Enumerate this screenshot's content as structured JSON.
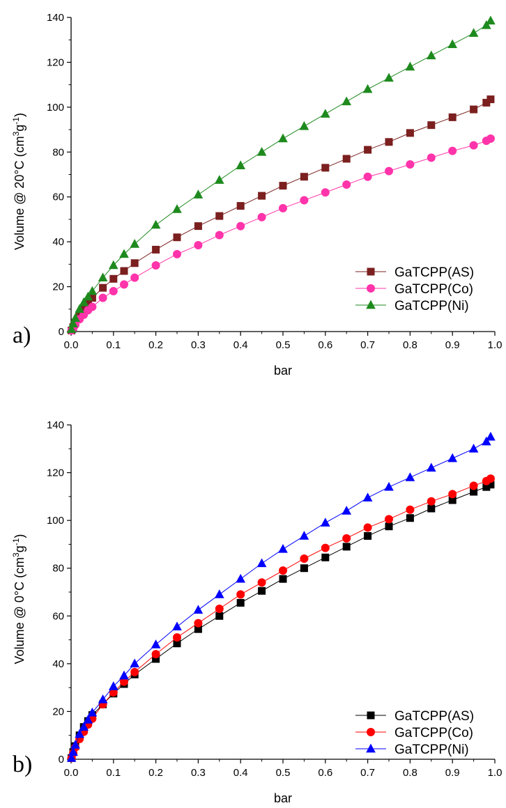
{
  "chart_data": [
    {
      "type": "line",
      "panel_label": "a)",
      "xlabel": "bar",
      "ylabel": {
        "prefix": "Volume @ 20°C (cm",
        "sup1": "3",
        "mid": "g",
        "sup2": "-1",
        "suffix": ")"
      },
      "xlim": [
        0,
        1.0
      ],
      "ylim": [
        0,
        140
      ],
      "xticks": [
        0.0,
        0.1,
        0.2,
        0.3,
        0.4,
        0.5,
        0.6,
        0.7,
        0.8,
        0.9,
        1.0
      ],
      "xtick_labels": [
        "0.0",
        "0.1",
        "0.2",
        "0.3",
        "0.4",
        "0.5",
        "0.6",
        "0.7",
        "0.8",
        "0.9",
        "1.0"
      ],
      "yticks": [
        0,
        20,
        40,
        60,
        80,
        100,
        120,
        140
      ],
      "ytick_labels": [
        "0",
        "20",
        "40",
        "60",
        "80",
        "100",
        "120",
        "140"
      ],
      "legend_position": "bottom-right",
      "series": [
        {
          "name": "GaTCPP(AS)",
          "color": "#7b1f1f",
          "marker": "square",
          "x": [
            0.001,
            0.005,
            0.01,
            0.02,
            0.03,
            0.04,
            0.05,
            0.075,
            0.1,
            0.125,
            0.15,
            0.2,
            0.25,
            0.3,
            0.35,
            0.4,
            0.45,
            0.5,
            0.55,
            0.6,
            0.65,
            0.7,
            0.75,
            0.8,
            0.85,
            0.9,
            0.95,
            0.98,
            0.99
          ],
          "y": [
            0.5,
            2,
            4,
            7,
            10,
            12.5,
            15,
            19.5,
            23.5,
            27,
            30.5,
            36.5,
            42,
            47,
            51.5,
            56,
            60.5,
            65,
            69,
            73,
            77,
            81,
            84.5,
            88.5,
            92,
            95.5,
            99,
            102,
            103.5
          ]
        },
        {
          "name": "GaTCPP(Co)",
          "color": "#ff33aa",
          "marker": "circle",
          "x": [
            0.001,
            0.005,
            0.01,
            0.02,
            0.03,
            0.04,
            0.05,
            0.075,
            0.1,
            0.125,
            0.15,
            0.2,
            0.25,
            0.3,
            0.35,
            0.4,
            0.45,
            0.5,
            0.55,
            0.6,
            0.65,
            0.7,
            0.75,
            0.8,
            0.85,
            0.9,
            0.95,
            0.98,
            0.99
          ],
          "y": [
            0.5,
            1.5,
            3,
            5.5,
            7.5,
            9.5,
            11,
            15,
            18,
            21,
            24,
            29.5,
            34.5,
            38.5,
            43,
            47,
            51,
            55,
            58.5,
            62,
            65.5,
            69,
            71.5,
            74.5,
            77.5,
            80.5,
            83,
            85,
            86
          ]
        },
        {
          "name": "GaTCPP(Ni)",
          "color": "#1e8a1e",
          "marker": "triangle",
          "x": [
            0.001,
            0.005,
            0.01,
            0.02,
            0.03,
            0.04,
            0.05,
            0.075,
            0.1,
            0.125,
            0.15,
            0.2,
            0.25,
            0.3,
            0.35,
            0.4,
            0.45,
            0.5,
            0.55,
            0.6,
            0.65,
            0.7,
            0.75,
            0.8,
            0.85,
            0.9,
            0.95,
            0.98,
            0.99
          ],
          "y": [
            1,
            3.5,
            6,
            10,
            13,
            15.5,
            18,
            24,
            29.5,
            34.5,
            39,
            47.5,
            54.5,
            61,
            67.5,
            74,
            80,
            86,
            91.5,
            97,
            102.5,
            108,
            113,
            118,
            123,
            128,
            133,
            136.5,
            138.5
          ]
        }
      ]
    },
    {
      "type": "line",
      "panel_label": "b)",
      "xlabel": "bar",
      "ylabel": {
        "prefix": "Volume @ 0°C (cm",
        "sup1": "3",
        "mid": "g",
        "sup2": "-1",
        "suffix": ")"
      },
      "xlim": [
        0,
        1.0
      ],
      "ylim": [
        0,
        140
      ],
      "xticks": [
        0.0,
        0.1,
        0.2,
        0.3,
        0.4,
        0.5,
        0.6,
        0.7,
        0.8,
        0.9,
        1.0
      ],
      "xtick_labels": [
        "0.0",
        "0.1",
        "0.2",
        "0.3",
        "0.4",
        "0.5",
        "0.6",
        "0.7",
        "0.8",
        "0.9",
        "1.0"
      ],
      "yticks": [
        0,
        20,
        40,
        60,
        80,
        100,
        120,
        140
      ],
      "ytick_labels": [
        "0",
        "20",
        "40",
        "60",
        "80",
        "100",
        "120",
        "140"
      ],
      "legend_position": "bottom-right",
      "series": [
        {
          "name": "GaTCPP(AS)",
          "color": "#000000",
          "marker": "square",
          "x": [
            0.001,
            0.005,
            0.01,
            0.02,
            0.03,
            0.04,
            0.05,
            0.075,
            0.1,
            0.125,
            0.15,
            0.2,
            0.25,
            0.3,
            0.35,
            0.4,
            0.45,
            0.5,
            0.55,
            0.6,
            0.65,
            0.7,
            0.75,
            0.8,
            0.85,
            0.9,
            0.95,
            0.98,
            0.99
          ],
          "y": [
            0.5,
            3,
            5.5,
            10,
            13.5,
            16,
            18.5,
            23,
            27.5,
            31.5,
            35.5,
            42,
            48.5,
            54.5,
            60,
            65.5,
            70.5,
            75.5,
            80,
            84.5,
            89,
            93.5,
            97.5,
            101,
            105,
            108.5,
            112,
            114,
            115
          ]
        },
        {
          "name": "GaTCPP(Co)",
          "color": "#ff0000",
          "marker": "circle",
          "x": [
            0.001,
            0.005,
            0.01,
            0.02,
            0.03,
            0.04,
            0.05,
            0.075,
            0.1,
            0.125,
            0.15,
            0.2,
            0.25,
            0.3,
            0.35,
            0.4,
            0.45,
            0.5,
            0.55,
            0.6,
            0.65,
            0.7,
            0.75,
            0.8,
            0.85,
            0.9,
            0.95,
            0.98,
            0.99
          ],
          "y": [
            0.5,
            2.5,
            5,
            8.5,
            11.5,
            14.5,
            17,
            23,
            28,
            32.5,
            36.5,
            44,
            51,
            57,
            63,
            69,
            74,
            79,
            84,
            88.5,
            92.5,
            97,
            100.5,
            104.5,
            108,
            111,
            114.5,
            116.5,
            117.5
          ]
        },
        {
          "name": "GaTCPP(Ni)",
          "color": "#0000ff",
          "marker": "triangle",
          "x": [
            0.001,
            0.005,
            0.01,
            0.02,
            0.03,
            0.04,
            0.05,
            0.075,
            0.1,
            0.125,
            0.15,
            0.2,
            0.25,
            0.3,
            0.35,
            0.4,
            0.45,
            0.5,
            0.55,
            0.6,
            0.65,
            0.7,
            0.75,
            0.8,
            0.85,
            0.9,
            0.95,
            0.98,
            0.99
          ],
          "y": [
            0.5,
            3,
            6,
            10.5,
            13.5,
            16.5,
            19.5,
            25,
            30.5,
            35,
            40,
            48,
            55.5,
            62.5,
            69,
            75.5,
            82,
            88,
            93.5,
            99,
            104,
            109.5,
            114,
            118,
            122,
            126,
            130,
            133,
            135
          ]
        }
      ]
    }
  ]
}
